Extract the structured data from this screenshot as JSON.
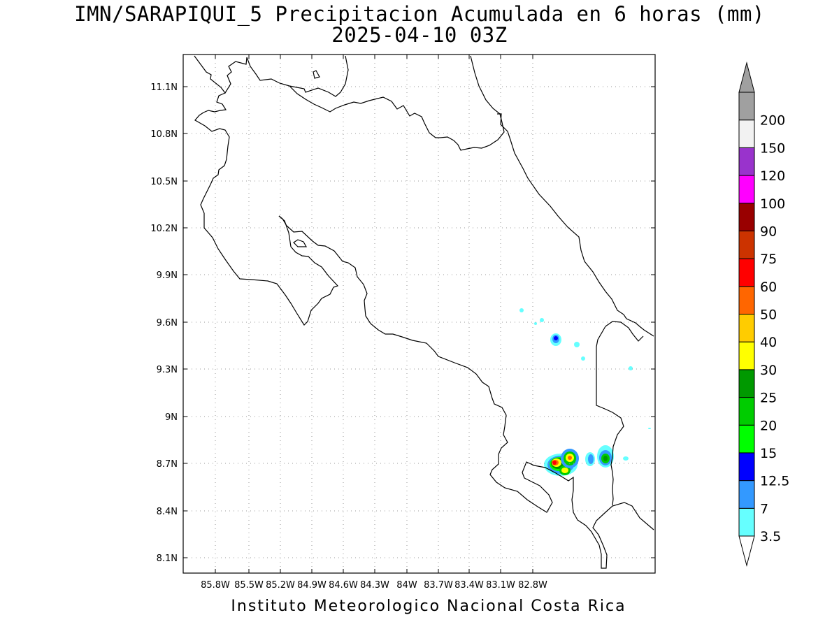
{
  "title": "IMN/SARAPIQUI_5 Precipitacion Acumulada en 6 horas (mm)",
  "subtitle": "2025-04-10 03Z",
  "footer": "Instituto Meteorologico Nacional Costa Rica",
  "map": {
    "lon_range": [
      -86.02,
      -82.58
    ],
    "lat_range": [
      8.02,
      11.32
    ],
    "lon_ticks": [
      "85.8W",
      "85.5W",
      "85.2W",
      "84.9W",
      "84.6W",
      "84.3W",
      "84W",
      "83.7W",
      "83.4W",
      "83.1W",
      "82.8W"
    ],
    "lat_ticks": [
      "11.1N",
      "10.8N",
      "10.5N",
      "10.2N",
      "9.9N",
      "9.6N",
      "9.3N",
      "9N",
      "8.7N",
      "8.4N",
      "8.1N"
    ],
    "grid": "dotted"
  },
  "colorbar": {
    "levels": [
      "3.5",
      "7",
      "12.5",
      "15",
      "20",
      "25",
      "30",
      "40",
      "50",
      "60",
      "75",
      "90",
      "100",
      "120",
      "150",
      "200"
    ],
    "colors": [
      "#66ffff",
      "#3399ff",
      "#0000ff",
      "#00ff00",
      "#00cc00",
      "#009900",
      "#ffff00",
      "#ffcc00",
      "#ff6600",
      "#ff0000",
      "#cc3300",
      "#990000",
      "#ff00ff",
      "#9933cc",
      "#f2f2f2",
      "#a0a0a0"
    ],
    "under_color": "#ffffff",
    "over_color": "#a0a0a0"
  },
  "rain_cells": [
    {
      "lon": -83.23,
      "lat": 8.7,
      "max": "60-75"
    },
    {
      "lon": -83.17,
      "lat": 8.66,
      "max": "40-50"
    },
    {
      "lon": -83.12,
      "lat": 8.73,
      "max": "50-60"
    },
    {
      "lon": -82.96,
      "lat": 8.72,
      "max": "12.5-15"
    },
    {
      "lon": -82.86,
      "lat": 8.72,
      "max": "25-30"
    },
    {
      "lon": -83.22,
      "lat": 9.48,
      "max": "12.5-15"
    }
  ]
}
